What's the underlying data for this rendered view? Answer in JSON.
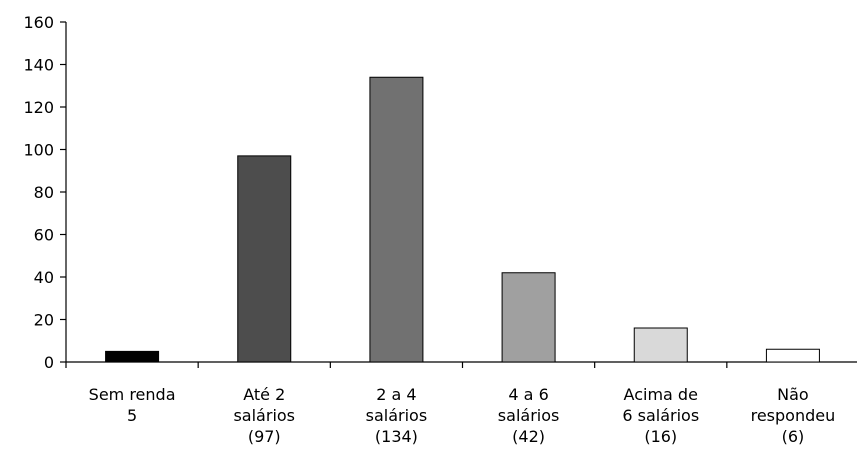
{
  "chart_data": {
    "type": "bar",
    "title": "",
    "xlabel": "",
    "ylabel": "",
    "ylim": [
      0,
      160
    ],
    "yticks": [
      0,
      20,
      40,
      60,
      80,
      100,
      120,
      140,
      160
    ],
    "grid": false,
    "legend": "none",
    "categories": [
      [
        "Sem renda",
        "5"
      ],
      [
        "Até 2",
        "salários",
        "(97)"
      ],
      [
        "2 a 4",
        "salários",
        "(134)"
      ],
      [
        "4 a 6",
        "salários",
        "(42)"
      ],
      [
        "Acima de",
        "6 salários",
        "(16)"
      ],
      [
        "Não",
        "respondeu",
        "(6)"
      ]
    ],
    "values": [
      5,
      97,
      134,
      42,
      16,
      6
    ],
    "colors": [
      "#000000",
      "#4d4d4d",
      "#717171",
      "#a0a0a0",
      "#d9d9d9",
      "#ffffff"
    ]
  }
}
